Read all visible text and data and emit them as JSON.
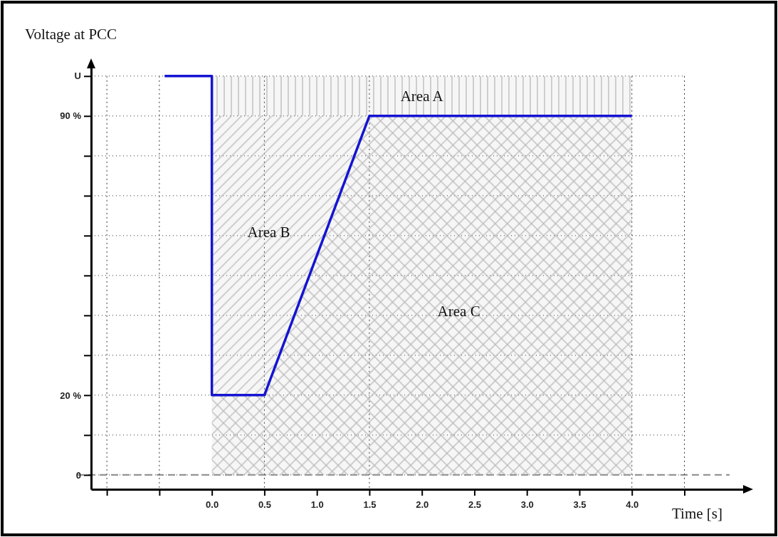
{
  "chart_data": {
    "type": "line",
    "title": "Voltage at PCC",
    "xlabel": "Time [s]",
    "xlim": [
      -1.15,
      5.1
    ],
    "ylim": [
      -3.6,
      103
    ],
    "xticks": [
      {
        "value": -1,
        "label": null
      },
      {
        "value": -0.5,
        "label": null
      },
      {
        "value": 0,
        "label": "0.0"
      },
      {
        "value": 0.5,
        "label": "0.5"
      },
      {
        "value": 1,
        "label": "1.0"
      },
      {
        "value": 1.5,
        "label": "1.5"
      },
      {
        "value": 2,
        "label": "2.0"
      },
      {
        "value": 2.5,
        "label": "2.5"
      },
      {
        "value": 3,
        "label": "3.0"
      },
      {
        "value": 3.5,
        "label": "3.5"
      },
      {
        "value": 4,
        "label": "4.0"
      },
      {
        "value": 4.5,
        "label": null
      }
    ],
    "yticks": [
      0,
      {
        "value": 10,
        "label": null
      },
      {
        "value": 20,
        "label": "20 %"
      },
      {
        "value": 30,
        "label": null
      },
      {
        "value": 40,
        "label": null
      },
      {
        "value": 50,
        "label": null
      },
      {
        "value": 60,
        "label": null
      },
      {
        "value": 70,
        "label": null
      },
      {
        "value": 80,
        "label": null
      },
      {
        "value": 90,
        "label": "90 %"
      },
      {
        "value": 100,
        "label": "U"
      }
    ],
    "grid": "y",
    "stacked": true,
    "series": [
      {
        "type": "area",
        "name": "Area C",
        "color": "#b4b4b4",
        "x": [
          0,
          0.5,
          1.5,
          4
        ],
        "values": [
          20,
          20,
          90,
          90
        ]
      },
      {
        "type": "area",
        "name": "Area B",
        "color": "#b4b4b4",
        "x": [
          0,
          0.5,
          1.5,
          4
        ],
        "values": [
          70,
          70,
          0,
          0
        ]
      },
      {
        "type": "area",
        "name": "Area A",
        "color": "#b4b4b4",
        "x": [
          0,
          0.5,
          1.5,
          4
        ],
        "values": [
          10,
          10,
          10,
          10
        ]
      },
      {
        "color": "#1414d2",
        "x": [
          -0.45,
          0,
          0,
          0.5,
          1.5,
          4
        ],
        "values": [
          100,
          100,
          20,
          20,
          90,
          90
        ]
      }
    ],
    "ref_lines": [
      {
        "axis": "y",
        "value": 0,
        "color": "#888888",
        "line_style": "dashed"
      },
      {
        "axis": "x",
        "value": -1,
        "color": "#333333",
        "line_style": "dotted"
      },
      {
        "axis": "x",
        "value": -0.5,
        "color": "#333333",
        "line_style": "dotted"
      },
      {
        "axis": "x",
        "value": 0.5,
        "color": "#333333",
        "line_style": "dotted"
      },
      {
        "axis": "x",
        "value": 1.5,
        "color": "#333333",
        "line_style": "dotted"
      },
      {
        "axis": "x",
        "value": 4,
        "color": "#333333",
        "line_style": "dotted"
      },
      {
        "axis": "x",
        "value": 4.5,
        "color": "#333333",
        "line_style": "dotted"
      }
    ]
  }
}
